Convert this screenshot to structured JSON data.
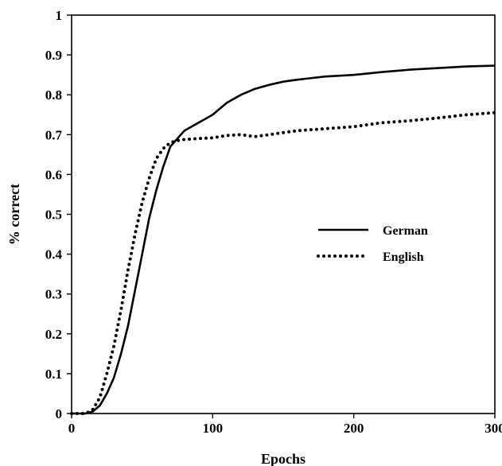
{
  "chart_data": {
    "type": "line",
    "title": "",
    "xlabel": "Epochs",
    "ylabel": "% correct",
    "xlim": [
      0,
      300
    ],
    "ylim": [
      0,
      1
    ],
    "x_ticks": [
      "0",
      "100",
      "200",
      "300"
    ],
    "y_ticks": [
      "0",
      "0.1",
      "0.2",
      "0.3",
      "0.4",
      "0.5",
      "0.6",
      "0.7",
      "0.8",
      "0.9",
      "1"
    ],
    "grid": false,
    "legend_position": "center-right",
    "series": [
      {
        "name": "German",
        "style": "solid",
        "color": "#000000",
        "x": [
          0,
          10,
          15,
          20,
          25,
          30,
          35,
          40,
          45,
          50,
          55,
          60,
          65,
          70,
          75,
          80,
          90,
          100,
          110,
          120,
          130,
          140,
          150,
          160,
          180,
          200,
          220,
          240,
          260,
          280,
          300
        ],
        "y": [
          0.0,
          0.0,
          0.005,
          0.02,
          0.05,
          0.09,
          0.15,
          0.22,
          0.31,
          0.4,
          0.49,
          0.56,
          0.62,
          0.67,
          0.69,
          0.71,
          0.73,
          0.75,
          0.78,
          0.8,
          0.815,
          0.825,
          0.833,
          0.838,
          0.846,
          0.85,
          0.857,
          0.863,
          0.867,
          0.871,
          0.873
        ]
      },
      {
        "name": "English",
        "style": "dotted",
        "color": "#000000",
        "x": [
          0,
          10,
          15,
          20,
          25,
          30,
          35,
          40,
          45,
          50,
          55,
          60,
          65,
          70,
          75,
          80,
          90,
          100,
          110,
          120,
          130,
          140,
          150,
          160,
          180,
          200,
          220,
          240,
          260,
          280,
          300
        ],
        "y": [
          0.0,
          0.0,
          0.01,
          0.04,
          0.1,
          0.17,
          0.26,
          0.36,
          0.45,
          0.53,
          0.59,
          0.64,
          0.665,
          0.68,
          0.685,
          0.688,
          0.69,
          0.692,
          0.698,
          0.7,
          0.695,
          0.7,
          0.705,
          0.71,
          0.715,
          0.72,
          0.73,
          0.735,
          0.742,
          0.75,
          0.755
        ]
      }
    ]
  }
}
